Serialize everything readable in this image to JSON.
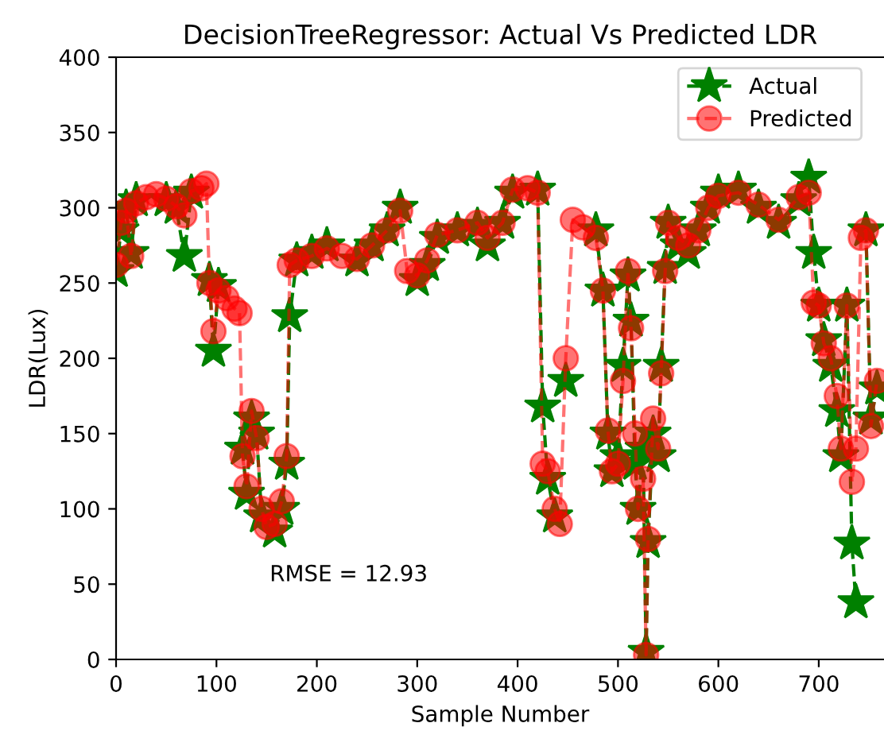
{
  "chart_data": {
    "type": "line",
    "title": "DecisionTreeRegressor: Actual Vs Predicted LDR",
    "xlabel": "Sample Number",
    "ylabel": "LDR(Lux)",
    "x": [
      0,
      5,
      10,
      15,
      20,
      30,
      40,
      50,
      60,
      68,
      75,
      85,
      90,
      93,
      97,
      102,
      110,
      118,
      123,
      126,
      130,
      135,
      140,
      145,
      150,
      158,
      165,
      170,
      173,
      180,
      195,
      210,
      225,
      240,
      255,
      270,
      283,
      290,
      300,
      310,
      320,
      340,
      360,
      370,
      385,
      395,
      410,
      420,
      425,
      430,
      437,
      442,
      448,
      455,
      465,
      478,
      485,
      490,
      494,
      500,
      505,
      510,
      513,
      517,
      520,
      525,
      528,
      530,
      535,
      540,
      543,
      547,
      550,
      560,
      570,
      580,
      590,
      600,
      620,
      640,
      660,
      680,
      690,
      695,
      700,
      705,
      712,
      718,
      722,
      728,
      733,
      737,
      742,
      747,
      752,
      758
    ],
    "series": [
      {
        "name": "Actual",
        "color": "#008000",
        "marker": "star",
        "line_style": "dashed",
        "values": [
          258,
          285,
          300,
          270,
          305,
          null,
          null,
          305,
          300,
          268,
          310,
          null,
          null,
          252,
          205,
          248,
          null,
          null,
          null,
          140,
          110,
          160,
          150,
          95,
          null,
          85,
          100,
          130,
          228,
          265,
          270,
          275,
          null,
          265,
          275,
          285,
          300,
          null,
          252,
          262,
          280,
          285,
          288,
          275,
          290,
          310,
          null,
          312,
          168,
          120,
          95,
          null,
          185,
          null,
          null,
          285,
          245,
          150,
          125,
          135,
          195,
          255,
          225,
          130,
          100,
          140,
          5,
          78,
          150,
          135,
          195,
          260,
          290,
          275,
          270,
          285,
          300,
          310,
          312,
          300,
          290,
          305,
          320,
          270,
          235,
          212,
          195,
          165,
          135,
          235,
          77,
          38,
          null,
          285,
          160,
          180
        ]
      },
      {
        "name": "Predicted",
        "color": "#ff0000",
        "marker": "circle",
        "line_style": "dashed",
        "values": [
          262,
          290,
          298,
          268,
          303,
          307,
          309,
          306,
          301,
          295,
          311,
          313,
          316,
          250,
          218,
          245,
          240,
          233,
          230,
          135,
          115,
          165,
          147,
          100,
          88,
          90,
          105,
          135,
          262,
          265,
          268,
          273,
          268,
          266,
          275,
          285,
          298,
          258,
          255,
          265,
          282,
          285,
          290,
          280,
          290,
          312,
          313,
          310,
          130,
          125,
          100,
          90,
          200,
          292,
          287,
          280,
          245,
          152,
          125,
          130,
          185,
          258,
          220,
          150,
          100,
          120,
          3,
          80,
          160,
          140,
          190,
          258,
          290,
          280,
          275,
          285,
          300,
          308,
          310,
          302,
          292,
          307,
          310,
          237,
          235,
          210,
          200,
          175,
          140,
          235,
          118,
          140,
          280,
          285,
          155,
          185
        ]
      }
    ],
    "xlim": [
      0,
      765
    ],
    "ylim": [
      0,
      400
    ],
    "xticks": [
      0,
      100,
      200,
      300,
      400,
      500,
      600,
      700
    ],
    "yticks": [
      0,
      50,
      100,
      150,
      200,
      250,
      300,
      350,
      400
    ],
    "legend": "top right",
    "grid": false,
    "annotations": [
      "RMSE = 12.93"
    ]
  }
}
